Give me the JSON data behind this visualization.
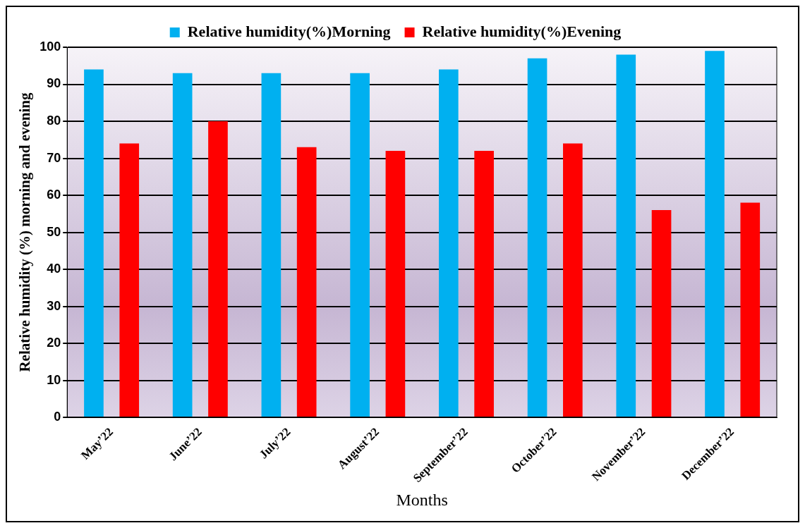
{
  "chart_data": {
    "type": "bar",
    "xlabel": "Months",
    "ylabel": "Relative humidity (%) morning and evening",
    "categories": [
      "May’22",
      "June’22",
      "July’22",
      "August’22",
      "September’22",
      "October’22",
      "November’22",
      "December’22"
    ],
    "series": [
      {
        "name": "Relative humidity(%)Morning",
        "color": "#00b0f0",
        "values": [
          94,
          93,
          93,
          93,
          94,
          97,
          98,
          99
        ]
      },
      {
        "name": "Relative humidity(%)Evening",
        "color": "#ff0000",
        "values": [
          74,
          80,
          73,
          72,
          72,
          74,
          56,
          58
        ]
      }
    ],
    "ylim": [
      0,
      100
    ],
    "yticks": [
      0,
      10,
      20,
      30,
      40,
      50,
      60,
      70,
      80,
      90,
      100
    ],
    "grid": "y",
    "legend": "top"
  }
}
